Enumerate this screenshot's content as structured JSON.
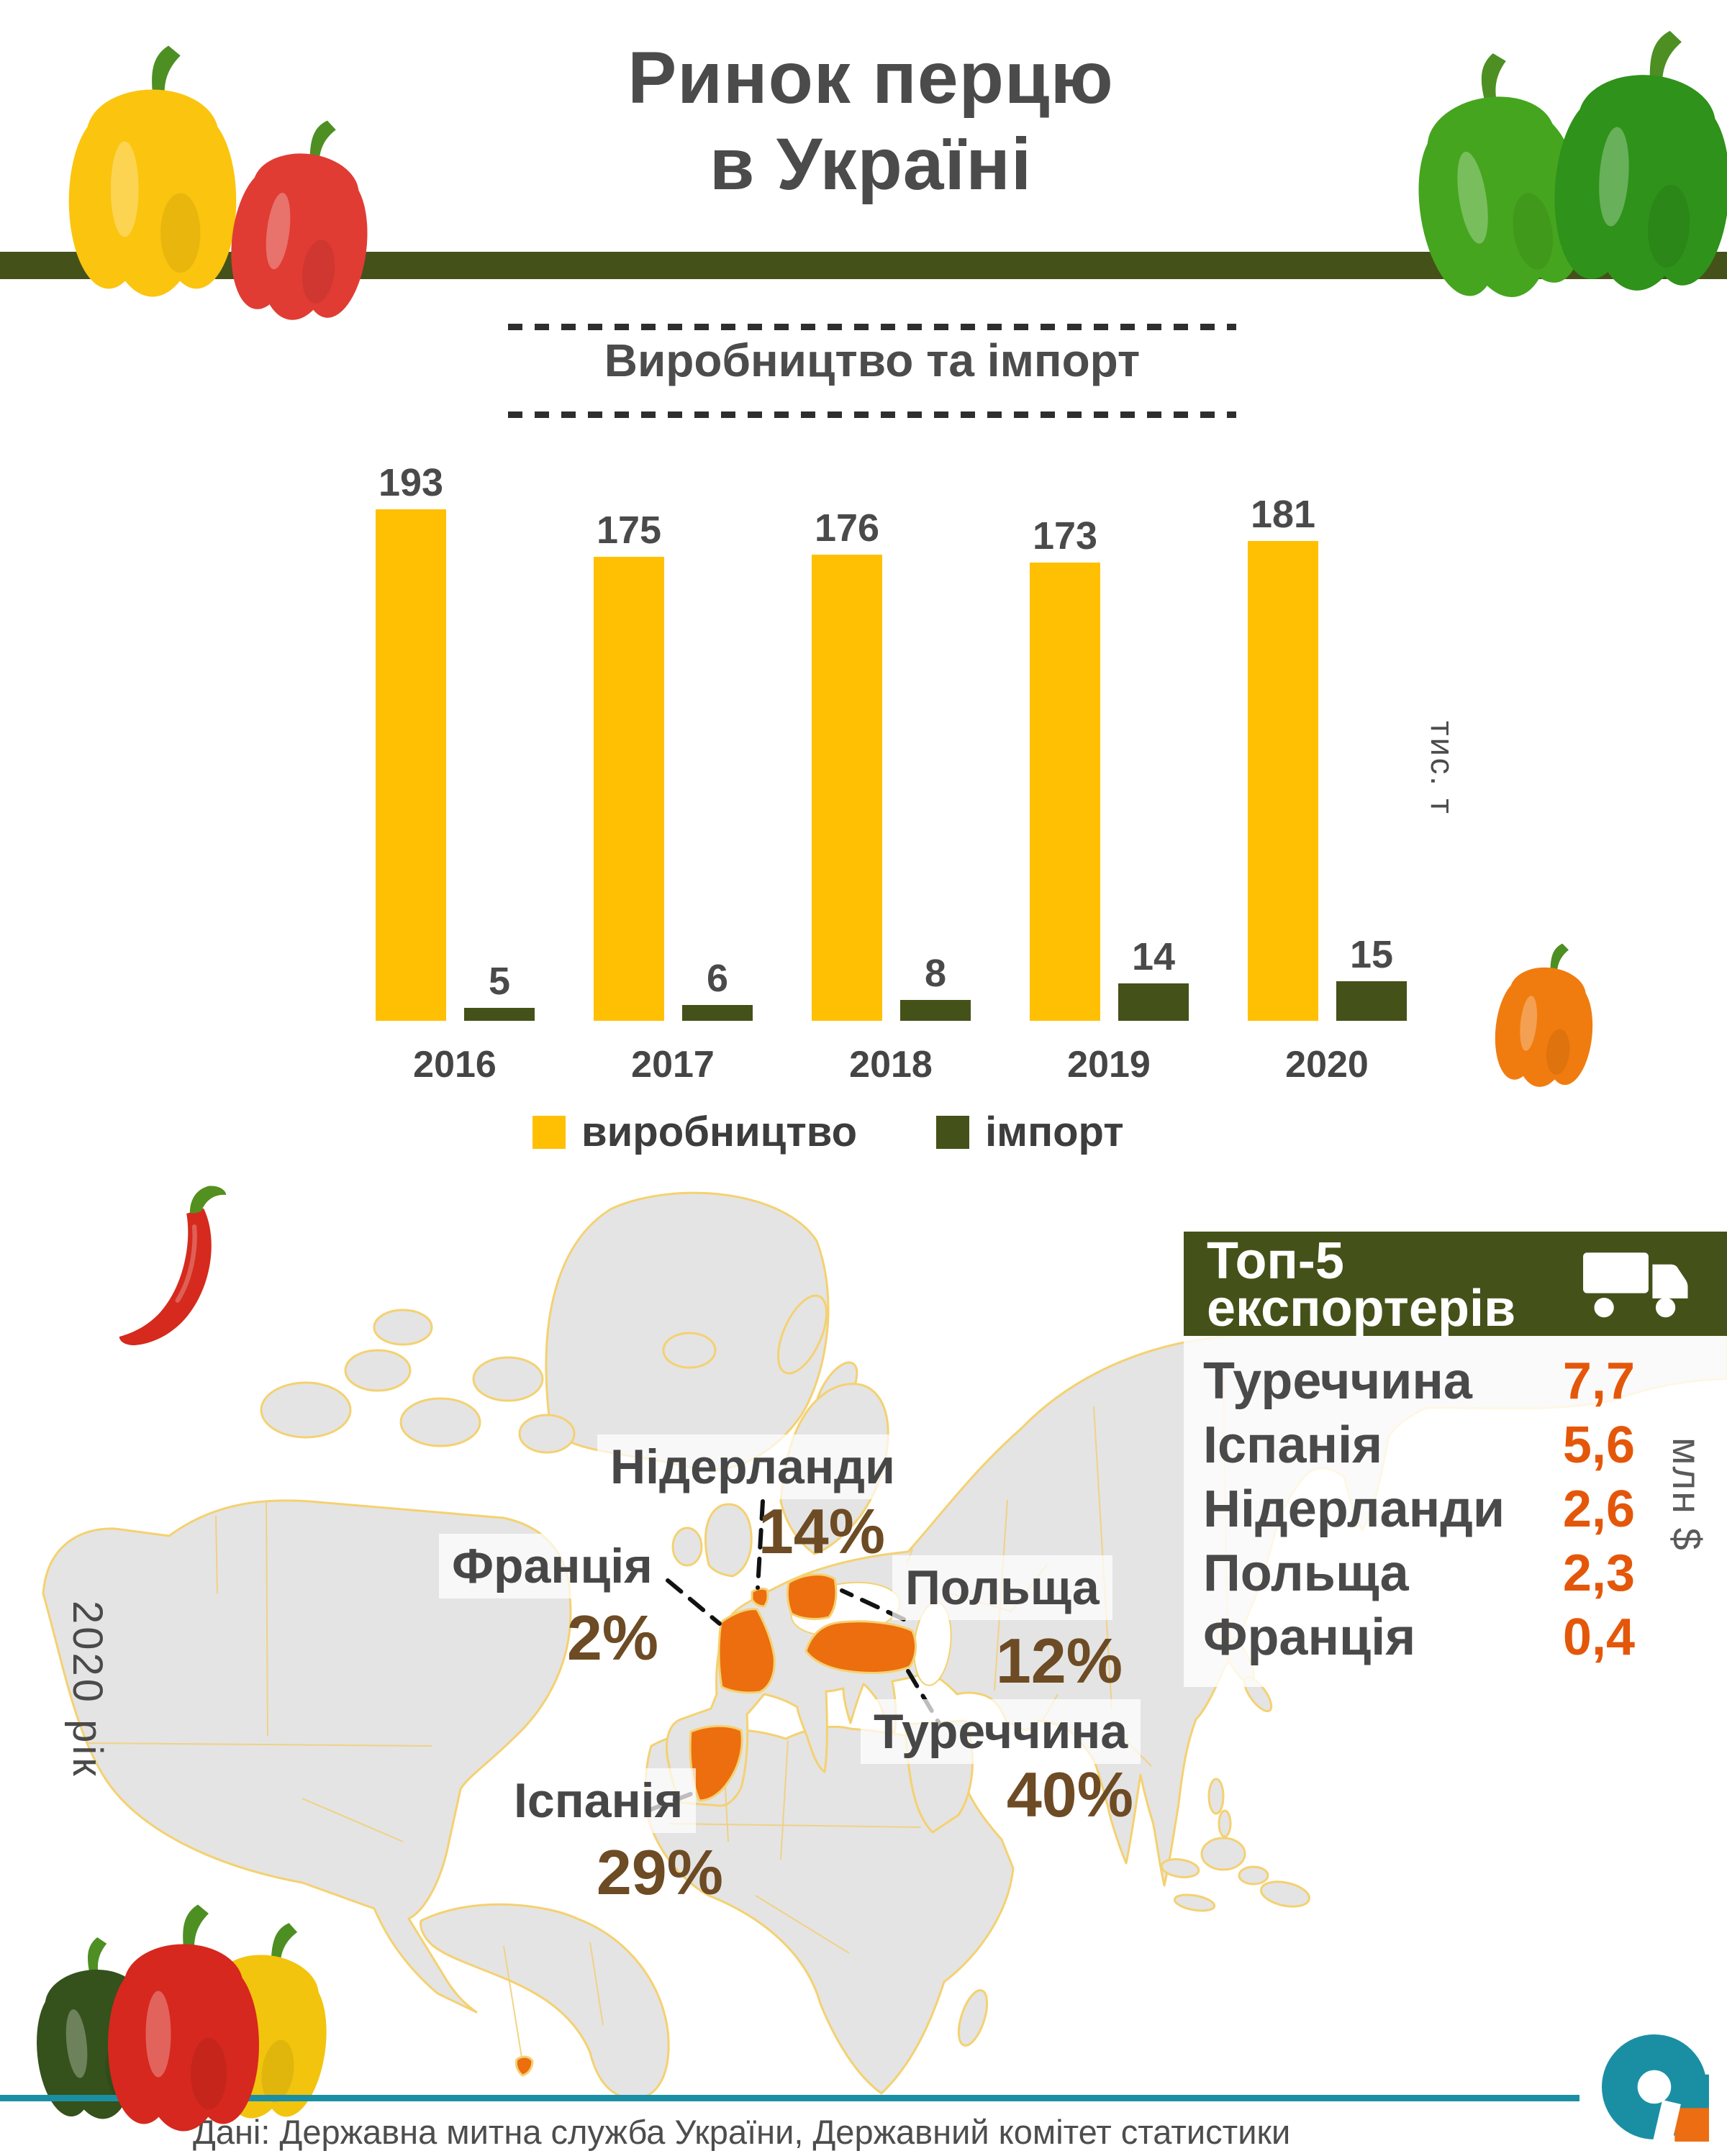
{
  "header": {
    "title_line1": "Ринок перцю",
    "title_line2": "в Україні"
  },
  "chart_data": [
    {
      "type": "bar",
      "title": "Виробництво та імпорт",
      "categories": [
        "2016",
        "2017",
        "2018",
        "2019",
        "2020"
      ],
      "series": [
        {
          "name": "виробництво",
          "color": "#ffc003",
          "values": [
            193,
            175,
            176,
            173,
            181
          ]
        },
        {
          "name": "імпорт",
          "color": "#445119",
          "values": [
            5,
            6,
            8,
            14,
            15
          ]
        }
      ],
      "ylabel": "тис. т",
      "ylim": [
        0,
        200
      ],
      "grid": false,
      "value_labels": true,
      "legend_position": "bottom"
    },
    {
      "type": "map",
      "year_label": "2020 рік",
      "regions": [
        {
          "name": "Туреччина",
          "share_pct": 40,
          "pct_label": "40%"
        },
        {
          "name": "Іспанія",
          "share_pct": 29,
          "pct_label": "29%"
        },
        {
          "name": "Нідерланди",
          "share_pct": 14,
          "pct_label": "14%"
        },
        {
          "name": "Польща",
          "share_pct": 12,
          "pct_label": "12%"
        },
        {
          "name": "Франція",
          "share_pct": 2,
          "pct_label": "2%"
        }
      ],
      "highlight_color": "#ec6e0e",
      "land_color": "#e4e4e4",
      "border_color": "#f4d171"
    },
    {
      "type": "table",
      "title_line1": "Топ-5",
      "title_line2": "експортерів",
      "unit": "млн $",
      "rows": [
        {
          "country": "Туреччина",
          "value": 7.7,
          "value_label": "7,7"
        },
        {
          "country": "Іспанія",
          "value": 5.6,
          "value_label": "5,6"
        },
        {
          "country": "Нідерланди",
          "value": 2.6,
          "value_label": "2,6"
        },
        {
          "country": "Польща",
          "value": 2.3,
          "value_label": "2,3"
        },
        {
          "country": "Франція",
          "value": 0.4,
          "value_label": "0,4"
        }
      ]
    }
  ],
  "footer": {
    "source": "Дані: Державна митна служба України, Державний комітет статистики"
  },
  "colors": {
    "olive": "#445119",
    "yellow": "#ffc003",
    "value_orange": "#e4570a",
    "map_orange": "#ec6e0e",
    "pct_brown": "#6d4b24",
    "teal": "#1a8fa4",
    "text_gray": "#4b4b4b",
    "land_gray": "#e4e4e4",
    "map_border_gold": "#f4d171"
  },
  "icons": {
    "truck": "truck-icon",
    "logo": "brand-logo",
    "peppers": [
      "yellow-bell-pepper-image",
      "red-bell-pepper-image",
      "green-bell-pepper-image",
      "orange-pepper-image",
      "red-chili-pepper-image",
      "dark-green-bell-pepper-image"
    ]
  }
}
